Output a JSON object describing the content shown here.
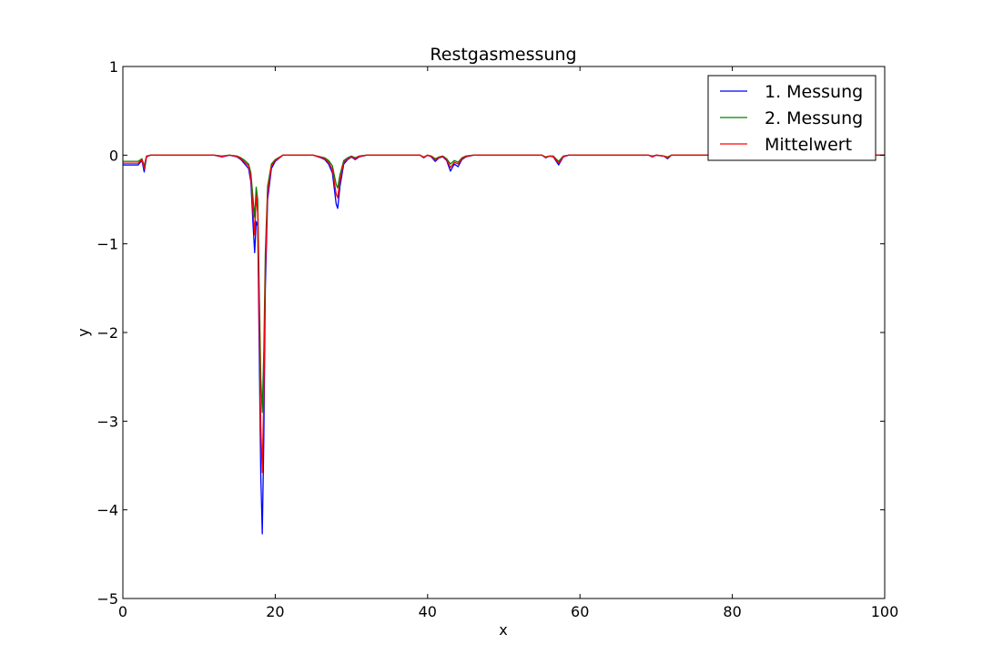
{
  "chart_data": {
    "type": "line",
    "title": "Restgasmessung",
    "xlabel": "x",
    "ylabel": "y",
    "xlim": [
      0,
      100
    ],
    "ylim": [
      -5,
      1
    ],
    "xticks": [
      0,
      20,
      40,
      60,
      80,
      100
    ],
    "yticks": [
      1,
      0,
      -1,
      -2,
      -3,
      -4,
      -5
    ],
    "xtick_labels": [
      "0",
      "20",
      "40",
      "60",
      "80",
      "100"
    ],
    "ytick_labels": [
      "1",
      "0",
      "−1",
      "−2",
      "−3",
      "−4",
      "−5"
    ],
    "legend_position": "top-right",
    "series": [
      {
        "name": "1. Messung",
        "color": "#0000ff",
        "points": [
          [
            0,
            -0.11
          ],
          [
            2,
            -0.11
          ],
          [
            2.5,
            -0.06
          ],
          [
            2.8,
            -0.19
          ],
          [
            3.1,
            -0.02
          ],
          [
            3.6,
            0
          ],
          [
            12,
            0
          ],
          [
            13,
            -0.02
          ],
          [
            14,
            0
          ],
          [
            15,
            -0.02
          ],
          [
            15.5,
            -0.05
          ],
          [
            16,
            -0.1
          ],
          [
            16.5,
            -0.15
          ],
          [
            16.8,
            -0.3
          ],
          [
            17.1,
            -0.8
          ],
          [
            17.3,
            -1.1
          ],
          [
            17.5,
            -0.75
          ],
          [
            17.7,
            -0.8
          ],
          [
            17.9,
            -2.2
          ],
          [
            18.1,
            -3.6
          ],
          [
            18.3,
            -4.27
          ],
          [
            18.5,
            -3.2
          ],
          [
            18.7,
            -1.5
          ],
          [
            19,
            -0.5
          ],
          [
            19.5,
            -0.15
          ],
          [
            20,
            -0.07
          ],
          [
            21,
            0
          ],
          [
            25,
            0
          ],
          [
            26,
            -0.03
          ],
          [
            26.5,
            -0.05
          ],
          [
            27,
            -0.1
          ],
          [
            27.5,
            -0.2
          ],
          [
            28,
            -0.55
          ],
          [
            28.2,
            -0.6
          ],
          [
            28.5,
            -0.35
          ],
          [
            29,
            -0.1
          ],
          [
            29.5,
            -0.05
          ],
          [
            30,
            -0.02
          ],
          [
            30.5,
            -0.05
          ],
          [
            31,
            -0.02
          ],
          [
            32,
            0
          ],
          [
            39,
            0
          ],
          [
            39.5,
            -0.03
          ],
          [
            40,
            0
          ],
          [
            40.5,
            -0.02
          ],
          [
            41,
            -0.07
          ],
          [
            41.5,
            -0.03
          ],
          [
            42,
            -0.02
          ],
          [
            42.5,
            -0.06
          ],
          [
            43,
            -0.18
          ],
          [
            43.5,
            -0.1
          ],
          [
            44,
            -0.13
          ],
          [
            44.5,
            -0.05
          ],
          [
            45,
            -0.02
          ],
          [
            46,
            0
          ],
          [
            55,
            0
          ],
          [
            55.5,
            -0.03
          ],
          [
            56,
            -0.01
          ],
          [
            56.5,
            -0.02
          ],
          [
            57.2,
            -0.11
          ],
          [
            57.8,
            -0.02
          ],
          [
            58.5,
            0
          ],
          [
            69,
            0
          ],
          [
            69.5,
            -0.02
          ],
          [
            70,
            0
          ],
          [
            71,
            -0.01
          ],
          [
            71.5,
            -0.04
          ],
          [
            72,
            0
          ],
          [
            100,
            0
          ]
        ]
      },
      {
        "name": "2. Messung",
        "color": "#008000",
        "points": [
          [
            0,
            -0.07
          ],
          [
            2,
            -0.07
          ],
          [
            2.5,
            -0.04
          ],
          [
            2.8,
            -0.12
          ],
          [
            3.1,
            -0.01
          ],
          [
            3.6,
            0
          ],
          [
            12,
            0
          ],
          [
            13,
            -0.01
          ],
          [
            14,
            0
          ],
          [
            15,
            -0.01
          ],
          [
            15.5,
            -0.03
          ],
          [
            16,
            -0.06
          ],
          [
            16.5,
            -0.1
          ],
          [
            16.8,
            -0.2
          ],
          [
            17.1,
            -0.5
          ],
          [
            17.3,
            -0.7
          ],
          [
            17.5,
            -0.36
          ],
          [
            17.7,
            -0.5
          ],
          [
            17.9,
            -1.5
          ],
          [
            18.1,
            -2.5
          ],
          [
            18.3,
            -2.9
          ],
          [
            18.5,
            -2.2
          ],
          [
            18.7,
            -1.1
          ],
          [
            19,
            -0.35
          ],
          [
            19.5,
            -0.1
          ],
          [
            20,
            -0.05
          ],
          [
            21,
            0
          ],
          [
            25,
            0
          ],
          [
            26,
            -0.02
          ],
          [
            26.5,
            -0.03
          ],
          [
            27,
            -0.06
          ],
          [
            27.5,
            -0.12
          ],
          [
            28,
            -0.33
          ],
          [
            28.2,
            -0.37
          ],
          [
            28.5,
            -0.22
          ],
          [
            29,
            -0.06
          ],
          [
            29.5,
            -0.03
          ],
          [
            30,
            -0.01
          ],
          [
            30.5,
            -0.03
          ],
          [
            31,
            -0.01
          ],
          [
            32,
            0
          ],
          [
            39,
            0
          ],
          [
            39.5,
            -0.02
          ],
          [
            40,
            0
          ],
          [
            40.5,
            -0.01
          ],
          [
            41,
            -0.04
          ],
          [
            41.5,
            -0.02
          ],
          [
            42,
            -0.01
          ],
          [
            42.5,
            -0.04
          ],
          [
            43,
            -0.1
          ],
          [
            43.5,
            -0.06
          ],
          [
            44,
            -0.08
          ],
          [
            44.5,
            -0.03
          ],
          [
            45,
            -0.01
          ],
          [
            46,
            0
          ],
          [
            55,
            0
          ],
          [
            55.5,
            -0.02
          ],
          [
            56,
            -0.01
          ],
          [
            56.5,
            -0.01
          ],
          [
            57.2,
            -0.07
          ],
          [
            57.8,
            -0.01
          ],
          [
            58.5,
            0
          ],
          [
            69,
            0
          ],
          [
            69.5,
            -0.01
          ],
          [
            70,
            0
          ],
          [
            71,
            -0.01
          ],
          [
            71.5,
            -0.02
          ],
          [
            72,
            0
          ],
          [
            100,
            0
          ]
        ]
      },
      {
        "name": "Mittelwert",
        "color": "#ff0000",
        "points": [
          [
            0,
            -0.09
          ],
          [
            2,
            -0.09
          ],
          [
            2.5,
            -0.05
          ],
          [
            2.8,
            -0.15
          ],
          [
            3.1,
            -0.015
          ],
          [
            3.6,
            0
          ],
          [
            12,
            0
          ],
          [
            13,
            -0.015
          ],
          [
            14,
            0
          ],
          [
            15,
            -0.015
          ],
          [
            15.5,
            -0.04
          ],
          [
            16,
            -0.08
          ],
          [
            16.5,
            -0.12
          ],
          [
            16.8,
            -0.25
          ],
          [
            17.1,
            -0.65
          ],
          [
            17.3,
            -0.9
          ],
          [
            17.5,
            -0.45
          ],
          [
            17.7,
            -0.65
          ],
          [
            17.9,
            -1.85
          ],
          [
            18.1,
            -3.05
          ],
          [
            18.3,
            -3.58
          ],
          [
            18.5,
            -2.7
          ],
          [
            18.7,
            -1.3
          ],
          [
            19,
            -0.42
          ],
          [
            19.5,
            -0.12
          ],
          [
            20,
            -0.06
          ],
          [
            21,
            0
          ],
          [
            25,
            0
          ],
          [
            26,
            -0.025
          ],
          [
            26.5,
            -0.04
          ],
          [
            27,
            -0.08
          ],
          [
            27.5,
            -0.16
          ],
          [
            28,
            -0.44
          ],
          [
            28.2,
            -0.48
          ],
          [
            28.5,
            -0.28
          ],
          [
            29,
            -0.08
          ],
          [
            29.5,
            -0.04
          ],
          [
            30,
            -0.015
          ],
          [
            30.5,
            -0.04
          ],
          [
            31,
            -0.015
          ],
          [
            32,
            0
          ],
          [
            39,
            0
          ],
          [
            39.5,
            -0.025
          ],
          [
            40,
            0
          ],
          [
            40.5,
            -0.015
          ],
          [
            41,
            -0.055
          ],
          [
            41.5,
            -0.025
          ],
          [
            42,
            -0.015
          ],
          [
            42.5,
            -0.05
          ],
          [
            43,
            -0.14
          ],
          [
            43.5,
            -0.08
          ],
          [
            44,
            -0.1
          ],
          [
            44.5,
            -0.04
          ],
          [
            45,
            -0.015
          ],
          [
            46,
            0
          ],
          [
            55,
            0
          ],
          [
            55.5,
            -0.025
          ],
          [
            56,
            -0.01
          ],
          [
            56.5,
            -0.015
          ],
          [
            57.2,
            -0.09
          ],
          [
            57.8,
            -0.015
          ],
          [
            58.5,
            0
          ],
          [
            69,
            0
          ],
          [
            69.5,
            -0.015
          ],
          [
            70,
            0
          ],
          [
            71,
            -0.01
          ],
          [
            71.5,
            -0.03
          ],
          [
            72,
            0
          ],
          [
            100,
            0
          ]
        ]
      }
    ]
  }
}
